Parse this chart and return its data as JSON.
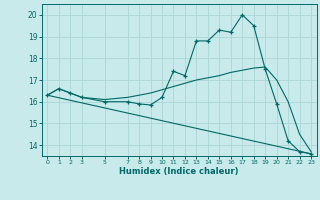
{
  "xlabel": "Humidex (Indice chaleur)",
  "background_color": "#c8eaea",
  "grid_color": "#b0d8d8",
  "line_color": "#006868",
  "xlim": [
    -0.5,
    23.5
  ],
  "ylim": [
    13.5,
    20.5
  ],
  "yticks": [
    14,
    15,
    16,
    17,
    18,
    19,
    20
  ],
  "xticks": [
    0,
    1,
    2,
    3,
    5,
    7,
    8,
    9,
    10,
    11,
    12,
    13,
    14,
    15,
    16,
    17,
    18,
    19,
    20,
    21,
    22,
    23
  ],
  "line1_x": [
    0,
    1,
    2,
    3,
    5,
    7,
    8,
    9,
    10,
    11,
    12,
    13,
    14,
    15,
    16,
    17,
    18,
    19,
    20,
    21,
    22,
    23
  ],
  "line1_y": [
    16.3,
    16.6,
    16.4,
    16.2,
    16.0,
    16.0,
    15.9,
    15.85,
    16.2,
    17.4,
    17.2,
    18.8,
    18.8,
    19.3,
    19.2,
    20.0,
    19.5,
    17.5,
    15.9,
    14.2,
    13.7,
    13.6
  ],
  "line2_x": [
    0,
    1,
    2,
    3,
    5,
    7,
    8,
    9,
    10,
    11,
    12,
    13,
    14,
    15,
    16,
    17,
    18,
    19,
    20,
    21,
    22,
    23
  ],
  "line2_y": [
    16.3,
    16.6,
    16.4,
    16.2,
    16.1,
    16.2,
    16.3,
    16.4,
    16.55,
    16.7,
    16.85,
    17.0,
    17.1,
    17.2,
    17.35,
    17.45,
    17.55,
    17.6,
    17.0,
    16.0,
    14.5,
    13.7
  ],
  "line3_x": [
    0,
    23
  ],
  "line3_y": [
    16.3,
    13.6
  ]
}
